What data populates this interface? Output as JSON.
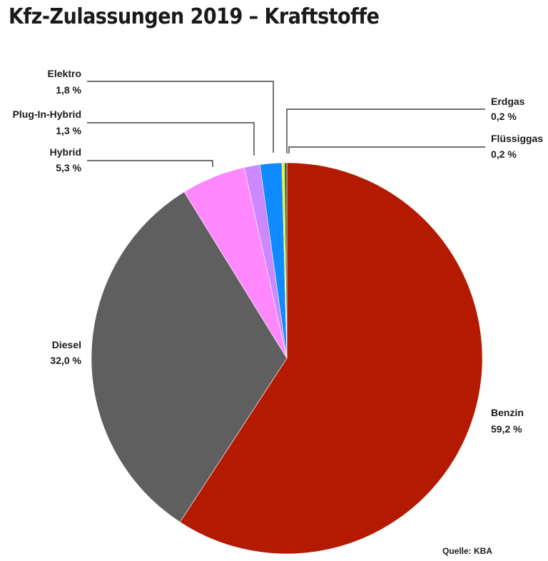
{
  "chart_data": {
    "type": "pie",
    "title": "Kfz-Zulassungen 2019 – Kraftstoffe",
    "source": "Quelle: KBA",
    "slices": [
      {
        "name": "Benzin",
        "value_label": "59,2 %",
        "value": 59.2,
        "color": "#b41a00"
      },
      {
        "name": "Diesel",
        "value_label": "32,0 %",
        "value": 32.0,
        "color": "#5f5f5f"
      },
      {
        "name": "Hybrid",
        "value_label": "5,3 %",
        "value": 5.3,
        "color": "#ff88ff"
      },
      {
        "name": "Plug-In-Hybrid",
        "value_label": "1,3 %",
        "value": 1.3,
        "color": "#cc88ff"
      },
      {
        "name": "Elektro",
        "value_label": "1,8 %",
        "value": 1.8,
        "color": "#0f8aff"
      },
      {
        "name": "Erdgas",
        "value_label": "0,2 %",
        "value": 0.2,
        "color": "#efef00"
      },
      {
        "name": "Flüssiggas",
        "value_label": "0,2 %",
        "value": 0.2,
        "color": "#2a6a2a"
      }
    ]
  }
}
